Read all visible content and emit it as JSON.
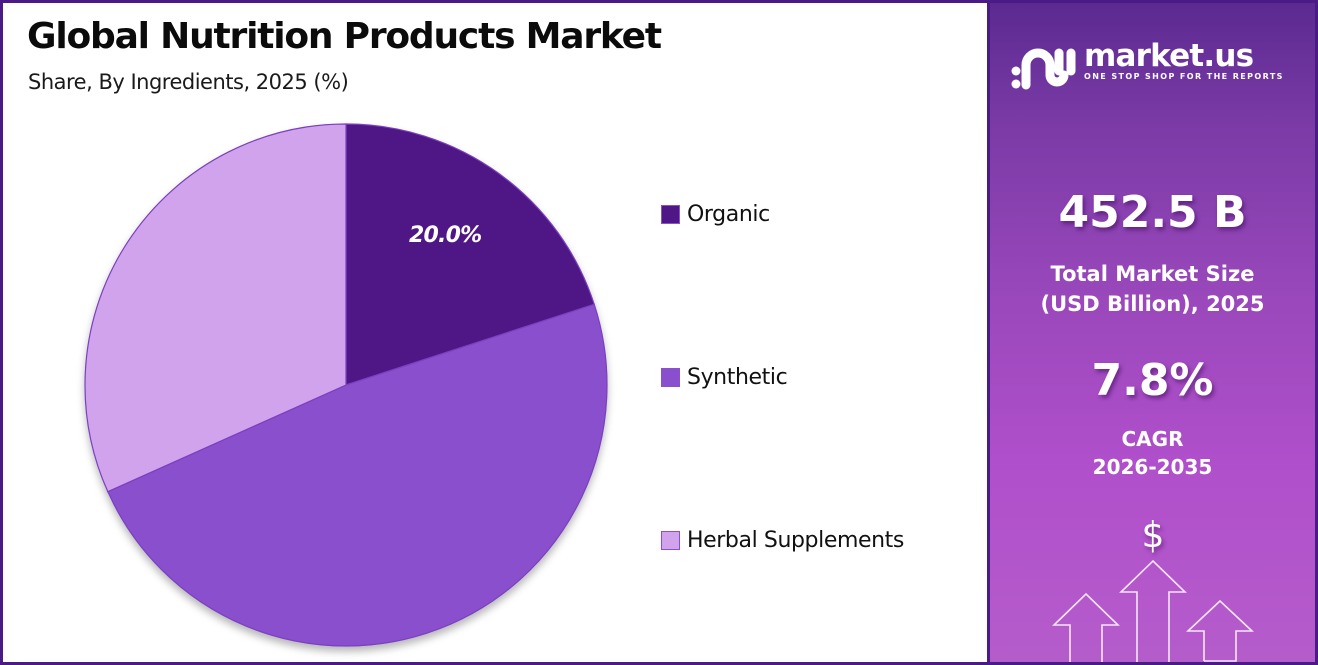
{
  "header": {
    "title": "Global Nutrition Products Market",
    "subtitle": "Share, By Ingredients, 2025 (%)"
  },
  "chart_data": {
    "type": "pie",
    "title": "Global Nutrition Products Market",
    "subtitle": "Share, By Ingredients, 2025 (%)",
    "categories": [
      "Organic",
      "Synthetic",
      "Herbal Supplements"
    ],
    "values": [
      20.0,
      48.3,
      31.7
    ],
    "labeled_values": {
      "Organic": "20.0%"
    },
    "colors": [
      "#4f1785",
      "#8a4fcc",
      "#d0a3ec"
    ],
    "start_angle": 0,
    "direction": "clockwise",
    "legend_position": "right"
  },
  "pie": {
    "slice_label": "20.0%"
  },
  "legend": {
    "items": [
      {
        "label": "Organic",
        "color": "#4f1785"
      },
      {
        "label": "Synthetic",
        "color": "#8a4fcc"
      },
      {
        "label": "Herbal Supplements",
        "color": "#d0a3ec"
      }
    ]
  },
  "side_panel": {
    "logo": {
      "name": "market.us",
      "tagline": "ONE STOP SHOP FOR THE REPORTS"
    },
    "market_size": {
      "value": "452.5 B",
      "caption_line1": "Total Market Size",
      "caption_line2": "(USD Billion), 2025"
    },
    "cagr": {
      "value": "7.8%",
      "caption_line1": "CAGR",
      "caption_line2": "2026-2035"
    },
    "decor_icon": "$"
  },
  "colors": {
    "border": "#4a1a86",
    "panel_top": "#5b2a91",
    "panel_bottom": "#b55ccb"
  }
}
